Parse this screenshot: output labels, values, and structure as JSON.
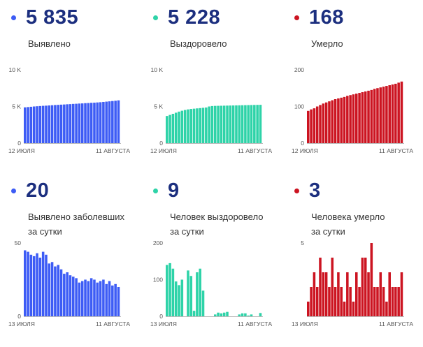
{
  "panels": [
    {
      "value": "5 835",
      "label_lines": [
        "Выявлено"
      ],
      "color": "#3d5cf5",
      "top": 0,
      "chart_data": {
        "type": "bar",
        "x_start": "12 ИЮЛЯ",
        "x_end": "11 АВГУСТА",
        "yticks": [
          "10 K",
          "5 K",
          "0"
        ],
        "ylim": [
          0,
          10000
        ],
        "values": [
          4880,
          4920,
          4960,
          5000,
          5030,
          5060,
          5090,
          5110,
          5140,
          5170,
          5200,
          5220,
          5250,
          5270,
          5300,
          5320,
          5350,
          5370,
          5400,
          5420,
          5450,
          5470,
          5500,
          5520,
          5550,
          5580,
          5620,
          5660,
          5700,
          5740,
          5780,
          5835
        ]
      }
    },
    {
      "value": "5 228",
      "label_lines": [
        "Выздоровело"
      ],
      "color": "#2ed3a8",
      "top": 0,
      "chart_data": {
        "type": "bar",
        "x_start": "12 ИЮЛЯ",
        "x_end": "11 АВГУСТА",
        "yticks": [
          "10 K",
          "5 K",
          "0"
        ],
        "ylim": [
          0,
          10000
        ],
        "values": [
          3700,
          3850,
          4000,
          4150,
          4300,
          4420,
          4520,
          4600,
          4660,
          4700,
          4740,
          4780,
          4820,
          4860,
          5000,
          5060,
          5080,
          5090,
          5100,
          5110,
          5120,
          5130,
          5140,
          5150,
          5160,
          5170,
          5180,
          5190,
          5200,
          5210,
          5219,
          5228
        ]
      }
    },
    {
      "value": "168",
      "label_lines": [
        "Умерло"
      ],
      "color": "#cc1421",
      "top": 0,
      "chart_data": {
        "type": "bar",
        "x_start": "12 ИЮЛЯ",
        "x_end": "11 АВГУСТА",
        "yticks": [
          "200",
          "100",
          "0"
        ],
        "ylim": [
          0,
          200
        ],
        "values": [
          88,
          92,
          95,
          100,
          104,
          108,
          111,
          114,
          117,
          120,
          122,
          124,
          126,
          129,
          131,
          133,
          135,
          137,
          139,
          141,
          143,
          145,
          148,
          150,
          152,
          154,
          156,
          158,
          160,
          162,
          165,
          168
        ]
      }
    },
    {
      "value": "20",
      "label_lines": [
        "Выявлено заболевших",
        "за сутки"
      ],
      "color": "#3d5cf5",
      "top": 248,
      "chart_data": {
        "type": "bar",
        "x_start": "13 ИЮЛЯ",
        "x_end": "11 АВГУСТА",
        "yticks": [
          "50",
          "0"
        ],
        "ylim": [
          0,
          50
        ],
        "values": [
          45,
          44,
          42,
          41,
          43,
          40,
          44,
          42,
          36,
          37,
          34,
          35,
          32,
          29,
          30,
          28,
          27,
          26,
          23,
          24,
          25,
          24,
          26,
          25,
          23,
          24,
          25,
          22,
          24,
          21,
          22,
          20
        ]
      }
    },
    {
      "value": "9",
      "label_lines": [
        "Человек выздоровело",
        "за сутки"
      ],
      "color": "#2ed3a8",
      "top": 248,
      "chart_data": {
        "type": "bar",
        "x_start": "13 ИЮЛЯ",
        "x_end": "11 АВГУСТА",
        "yticks": [
          "200",
          "100",
          "0"
        ],
        "ylim": [
          0,
          200
        ],
        "values": [
          140,
          145,
          130,
          95,
          85,
          100,
          0,
          125,
          110,
          15,
          120,
          130,
          70,
          0,
          0,
          0,
          5,
          10,
          8,
          10,
          12,
          0,
          0,
          0,
          5,
          8,
          8,
          2,
          5,
          0,
          0,
          9
        ]
      }
    },
    {
      "value": "3",
      "label_lines": [
        "Человека умерло",
        "за сутки"
      ],
      "color": "#cc1421",
      "top": 248,
      "chart_data": {
        "type": "bar",
        "x_start": "13 ИЮЛЯ",
        "x_end": "11 АВГУСТА",
        "yticks": [
          "5"
        ],
        "ylim": [
          0,
          5
        ],
        "values": [
          1,
          2,
          3,
          2,
          4,
          3,
          3,
          2,
          4,
          2,
          3,
          2,
          1,
          3,
          2,
          1,
          3,
          2,
          4,
          4,
          3,
          5,
          2,
          2,
          3,
          2,
          1,
          3,
          2,
          2,
          2,
          3
        ]
      }
    }
  ]
}
